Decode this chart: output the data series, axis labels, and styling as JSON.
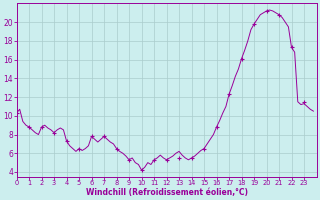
{
  "x_data": [
    0.0,
    0.25,
    0.5,
    0.75,
    1.0,
    1.25,
    1.5,
    1.75,
    2.0,
    2.25,
    2.5,
    2.75,
    3.0,
    3.25,
    3.5,
    3.75,
    4.0,
    4.25,
    4.5,
    4.75,
    5.0,
    5.25,
    5.5,
    5.75,
    6.0,
    6.25,
    6.5,
    6.75,
    7.0,
    7.25,
    7.5,
    7.75,
    8.0,
    8.25,
    8.5,
    8.75,
    9.0,
    9.25,
    9.5,
    9.75,
    10.0,
    10.25,
    10.5,
    10.75,
    11.0,
    11.25,
    11.5,
    11.75,
    12.0,
    12.25,
    12.5,
    12.75,
    13.0,
    13.25,
    13.5,
    13.75,
    14.0,
    14.25,
    14.5,
    14.75,
    15.0,
    15.25,
    15.5,
    15.75,
    16.0,
    16.25,
    16.5,
    16.75,
    17.0,
    17.25,
    17.5,
    17.75,
    18.0,
    18.25,
    18.5,
    18.75,
    19.0,
    19.25,
    19.5,
    19.75,
    20.0,
    20.25,
    20.5,
    20.75,
    21.0,
    21.25,
    21.5,
    21.75,
    22.0,
    22.25,
    22.5,
    22.75,
    23.0,
    23.25,
    23.5,
    23.75
  ],
  "windchill": [
    10.3,
    10.7,
    9.4,
    9.0,
    8.8,
    8.5,
    8.2,
    8.0,
    8.8,
    9.0,
    8.7,
    8.5,
    8.2,
    8.5,
    8.7,
    8.5,
    7.3,
    6.8,
    6.5,
    6.2,
    6.5,
    6.3,
    6.5,
    6.8,
    7.8,
    7.5,
    7.2,
    7.5,
    7.8,
    7.5,
    7.2,
    7.0,
    6.5,
    6.2,
    6.0,
    5.7,
    5.3,
    5.5,
    5.0,
    4.8,
    4.2,
    4.5,
    5.0,
    4.8,
    5.3,
    5.5,
    5.8,
    5.5,
    5.3,
    5.5,
    5.7,
    6.0,
    6.2,
    5.8,
    5.5,
    5.3,
    5.5,
    5.7,
    6.0,
    6.3,
    6.5,
    7.0,
    7.5,
    8.0,
    8.8,
    9.5,
    10.3,
    11.0,
    12.3,
    13.2,
    14.2,
    15.0,
    16.1,
    17.0,
    18.0,
    19.2,
    19.8,
    20.3,
    20.8,
    21.0,
    21.2,
    21.3,
    21.2,
    21.0,
    20.8,
    20.5,
    20.0,
    19.5,
    17.3,
    16.8,
    11.5,
    11.2,
    11.3,
    11.0,
    10.7,
    10.5
  ],
  "marker_x": [
    0,
    1,
    2,
    3,
    4,
    5,
    6,
    7,
    8,
    9,
    10,
    11,
    12,
    13,
    14,
    15,
    16,
    17,
    18,
    19,
    20,
    21,
    22,
    23
  ],
  "marker_y": [
    10.3,
    8.8,
    8.8,
    8.2,
    7.3,
    6.5,
    7.8,
    7.8,
    6.5,
    5.3,
    4.2,
    5.3,
    5.3,
    5.5,
    5.5,
    6.5,
    8.8,
    12.3,
    16.1,
    19.8,
    21.2,
    20.8,
    17.3,
    11.5
  ],
  "line_color": "#990099",
  "bg_color": "#cceeee",
  "grid_color": "#aacccc",
  "tick_color": "#990099",
  "xlabel": "Windchill (Refroidissement éolien,°C)",
  "xlim": [
    0,
    24
  ],
  "ylim": [
    3.5,
    22.0
  ],
  "yticks": [
    4,
    6,
    8,
    10,
    12,
    14,
    16,
    18,
    20
  ],
  "xticks": [
    0,
    1,
    2,
    3,
    4,
    5,
    6,
    7,
    8,
    9,
    10,
    11,
    12,
    13,
    14,
    15,
    16,
    17,
    18,
    19,
    20,
    21,
    22,
    23
  ]
}
